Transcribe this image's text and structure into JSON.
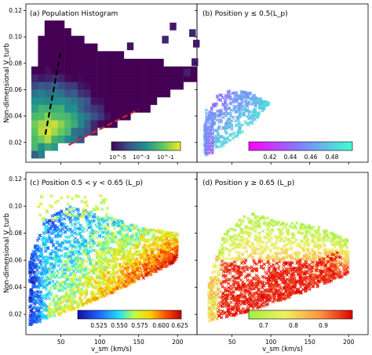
{
  "figure": {
    "shared_ylabel": "Non-dimensional V_turb",
    "shared_xlabel": "v_sm (km/s)",
    "x_ticks": [
      50,
      100,
      150,
      200
    ],
    "y_ticks": [
      0.02,
      0.04,
      0.06,
      0.08,
      0.1,
      0.12
    ],
    "y_tick_labels": [
      "0.02",
      "0.04",
      "0.06",
      "0.08",
      "0.10",
      "0.12"
    ],
    "x_tick_labels": [
      "50",
      "100",
      "150",
      "200"
    ]
  },
  "chart_data": [
    {
      "panel": "a",
      "type": "heatmap",
      "title": "(a) Population Histogram",
      "xlabel": "",
      "ylabel": "Non-dimensional V_turb",
      "xlim": [
        5,
        225
      ],
      "ylim": [
        0.005,
        0.125
      ],
      "scale": "log",
      "colormap": "viridis",
      "colorbar": {
        "ticks": [
          "10^-5",
          "10^-3",
          "10^-1"
        ],
        "range": [
          1e-06,
          1
        ]
      },
      "envelope": {
        "lower": [
          [
            15,
            0.01
          ],
          [
            40,
            0.017
          ],
          [
            80,
            0.025
          ],
          [
            120,
            0.035
          ],
          [
            160,
            0.047
          ],
          [
            190,
            0.058
          ],
          [
            210,
            0.068
          ]
        ],
        "upper": [
          [
            15,
            0.075
          ],
          [
            30,
            0.11
          ],
          [
            45,
            0.112
          ],
          [
            70,
            0.1
          ],
          [
            100,
            0.09
          ],
          [
            130,
            0.085
          ],
          [
            165,
            0.08
          ],
          [
            200,
            0.076
          ]
        ],
        "peak": [
          30,
          0.03
        ]
      },
      "fit_lines": [
        {
          "style": "dashed",
          "color": "#000000",
          "points": [
            [
              30,
              0.026
            ],
            [
              50,
              0.09
            ]
          ]
        },
        {
          "style": "dashed",
          "color": "#d62728",
          "points": [
            [
              60,
              0.018
            ],
            [
              150,
              0.045
            ]
          ]
        }
      ]
    },
    {
      "panel": "b",
      "type": "scatter",
      "title": "(b) Position y ≤ 0.5(L_p)",
      "xlim": [
        5,
        225
      ],
      "ylim": [
        0.005,
        0.125
      ],
      "colormap": "cool",
      "colorbar": {
        "ticks": [
          "0.42",
          "0.44",
          "0.46",
          "0.48"
        ],
        "range": [
          0.4,
          0.5
        ]
      },
      "points_region": {
        "x": [
          15,
          100
        ],
        "y": [
          0.01,
          0.06
        ]
      }
    },
    {
      "panel": "c",
      "type": "scatter",
      "title": "(c) Position 0.5 < y < 0.65 (L_p)",
      "xlabel": "v_sm (km/s)",
      "ylabel": "Non-dimensional V_turb",
      "xlim": [
        5,
        225
      ],
      "ylim": [
        0.005,
        0.125
      ],
      "colormap": "jet",
      "colorbar": {
        "ticks": [
          "0.525",
          "0.550",
          "0.575",
          "0.600",
          "0.625"
        ],
        "range": [
          0.5,
          0.65
        ]
      },
      "points_region": {
        "x": [
          10,
          200
        ],
        "y": [
          0.01,
          0.11
        ]
      }
    },
    {
      "panel": "d",
      "type": "scatter",
      "title": "(d) Position y ≥ 0.65 (L_p)",
      "xlabel": "v_sm (km/s)",
      "xlim": [
        5,
        225
      ],
      "ylim": [
        0.005,
        0.125
      ],
      "colormap": "RdYlGn_r-like",
      "colorbar": {
        "ticks": [
          "0.7",
          "0.8",
          "0.9"
        ],
        "range": [
          0.65,
          1.0
        ]
      },
      "points_region": {
        "x": [
          20,
          200
        ],
        "y": [
          0.015,
          0.1
        ]
      }
    }
  ],
  "colors": {
    "fit_black": "#000000",
    "fit_red": "#d62728",
    "axis": "#000000"
  }
}
